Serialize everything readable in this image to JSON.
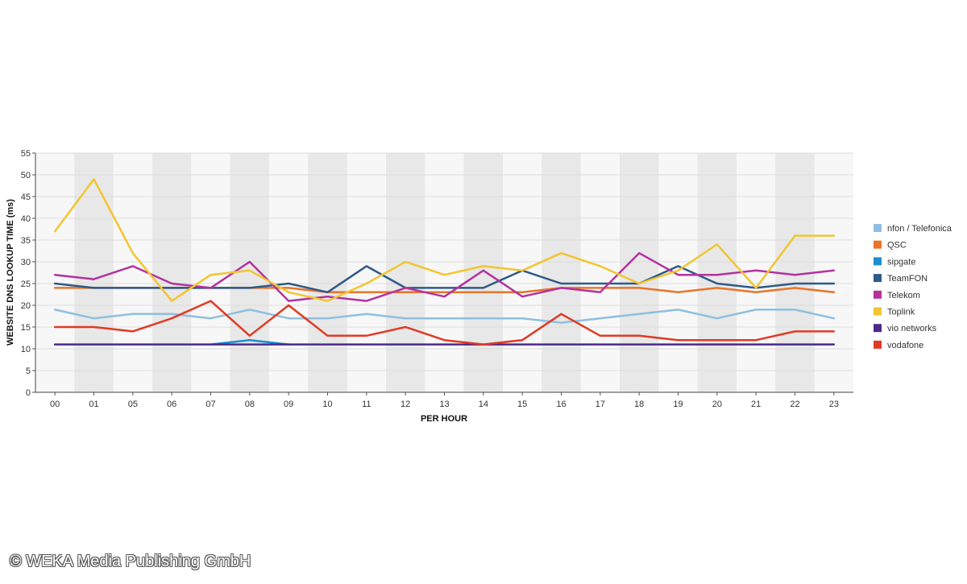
{
  "copyright": "© WEKA Media Publishing GmbH",
  "chart_data": {
    "type": "line",
    "xlabel": "PER HOUR",
    "ylabel": "WEBSITE DNS LOOKUP TIME (ms)",
    "ylim": [
      0,
      55
    ],
    "yticks": [
      0,
      5,
      10,
      15,
      20,
      25,
      30,
      35,
      40,
      45,
      50,
      55
    ],
    "grid": true,
    "legend_position": "right",
    "categories": [
      "00",
      "01",
      "05",
      "06",
      "07",
      "08",
      "09",
      "10",
      "11",
      "12",
      "13",
      "14",
      "15",
      "16",
      "17",
      "18",
      "19",
      "20",
      "21",
      "22",
      "23"
    ],
    "series": [
      {
        "name": "nfon / Telefonica",
        "color": "#8fbfe0",
        "values": [
          19,
          17,
          18,
          18,
          17,
          19,
          17,
          17,
          18,
          17,
          17,
          17,
          17,
          16,
          17,
          18,
          19,
          17,
          19,
          19,
          17
        ]
      },
      {
        "name": "QSC",
        "color": "#e8742a",
        "values": [
          24,
          24,
          24,
          24,
          24,
          24,
          24,
          23,
          23,
          23,
          23,
          23,
          23,
          24,
          24,
          24,
          23,
          24,
          23,
          24,
          23
        ]
      },
      {
        "name": "sipgate",
        "color": "#1a8fcf",
        "values": [
          null,
          null,
          null,
          null,
          11,
          12,
          11,
          null,
          null,
          null,
          null,
          null,
          null,
          null,
          null,
          null,
          null,
          null,
          null,
          null,
          null
        ]
      },
      {
        "name": "TeamFON",
        "color": "#2e5a88",
        "values": [
          25,
          24,
          24,
          24,
          24,
          24,
          25,
          23,
          29,
          24,
          24,
          24,
          28,
          25,
          25,
          25,
          29,
          25,
          24,
          25,
          25
        ]
      },
      {
        "name": "Telekom",
        "color": "#b3329e",
        "values": [
          27,
          26,
          29,
          25,
          24,
          30,
          21,
          22,
          21,
          24,
          22,
          28,
          22,
          24,
          23,
          32,
          27,
          27,
          28,
          27,
          28
        ]
      },
      {
        "name": "Toplink",
        "color": "#f2c530",
        "values": [
          37,
          49,
          32,
          21,
          27,
          28,
          23,
          21,
          25,
          30,
          27,
          29,
          28,
          32,
          29,
          25,
          28,
          34,
          24,
          36,
          36
        ]
      },
      {
        "name": "vio networks",
        "color": "#4b2a8a",
        "values": [
          11,
          11,
          11,
          11,
          11,
          11,
          11,
          11,
          11,
          11,
          11,
          11,
          11,
          11,
          11,
          11,
          11,
          11,
          11,
          11,
          11
        ]
      },
      {
        "name": "vodafone",
        "color": "#e03a24",
        "values": [
          15,
          15,
          14,
          17,
          21,
          13,
          20,
          13,
          13,
          15,
          12,
          11,
          12,
          18,
          13,
          13,
          12,
          12,
          12,
          14,
          14
        ]
      }
    ]
  }
}
